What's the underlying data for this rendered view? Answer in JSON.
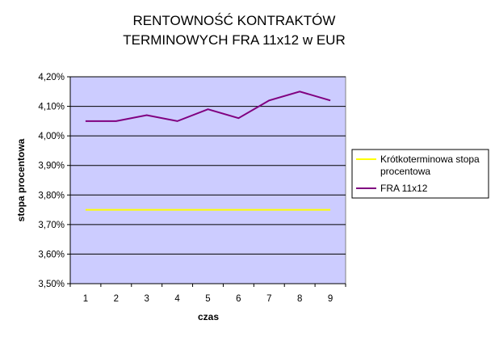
{
  "chart_data": {
    "type": "line",
    "title_lines": [
      "RENTOWNOŚĆ KONTRAKTÓW",
      "TERMINOWYCH FRA 11x12 w EUR"
    ],
    "xlabel": "czas",
    "ylabel": "stopa procentowa",
    "x": [
      1,
      2,
      3,
      4,
      5,
      6,
      7,
      8,
      9
    ],
    "x_tick_labels": [
      "1",
      "2",
      "3",
      "4",
      "5",
      "6",
      "7",
      "8",
      "9"
    ],
    "y_tick_labels": [
      "3,50%",
      "3,60%",
      "3,70%",
      "3,80%",
      "3,90%",
      "4,00%",
      "4,10%",
      "4,20%"
    ],
    "ylim": [
      3.5,
      4.2
    ],
    "grid": true,
    "legend_position": "right",
    "plot_background": "#ccccff",
    "series": [
      {
        "name_lines": [
          "Krótkoterminowa stopa",
          "procentowa"
        ],
        "color": "#ffff00",
        "values": [
          3.75,
          3.75,
          3.75,
          3.75,
          3.75,
          3.75,
          3.75,
          3.75,
          3.75
        ]
      },
      {
        "name_lines": [
          "FRA 11x12"
        ],
        "color": "#800080",
        "values": [
          4.05,
          4.05,
          4.07,
          4.05,
          4.09,
          4.06,
          4.12,
          4.15,
          4.12
        ]
      }
    ]
  }
}
